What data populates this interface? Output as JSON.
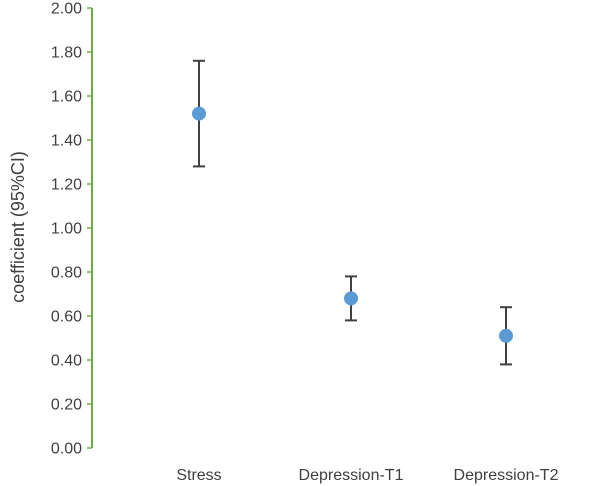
{
  "chart_data": {
    "type": "scatter",
    "title": "",
    "xlabel": "",
    "ylabel": "coefficient (95%CI)",
    "categories": [
      "Stress",
      "Depression-T1",
      "Depression-T2"
    ],
    "values": [
      1.52,
      0.68,
      0.51
    ],
    "ci_lower": [
      1.28,
      0.58,
      0.38
    ],
    "ci_upper": [
      1.76,
      0.78,
      0.64
    ],
    "ylim": [
      0,
      2
    ],
    "yticks": [
      "0.00",
      "0.20",
      "0.40",
      "0.60",
      "0.80",
      "1.00",
      "1.20",
      "1.40",
      "1.60",
      "1.80",
      "2.00"
    ],
    "grid": false,
    "legend": "none",
    "colors": {
      "marker": "#5B9BD5",
      "errorbar": "#404040",
      "yaxis": "#70AD47",
      "text": "#404040"
    }
  }
}
